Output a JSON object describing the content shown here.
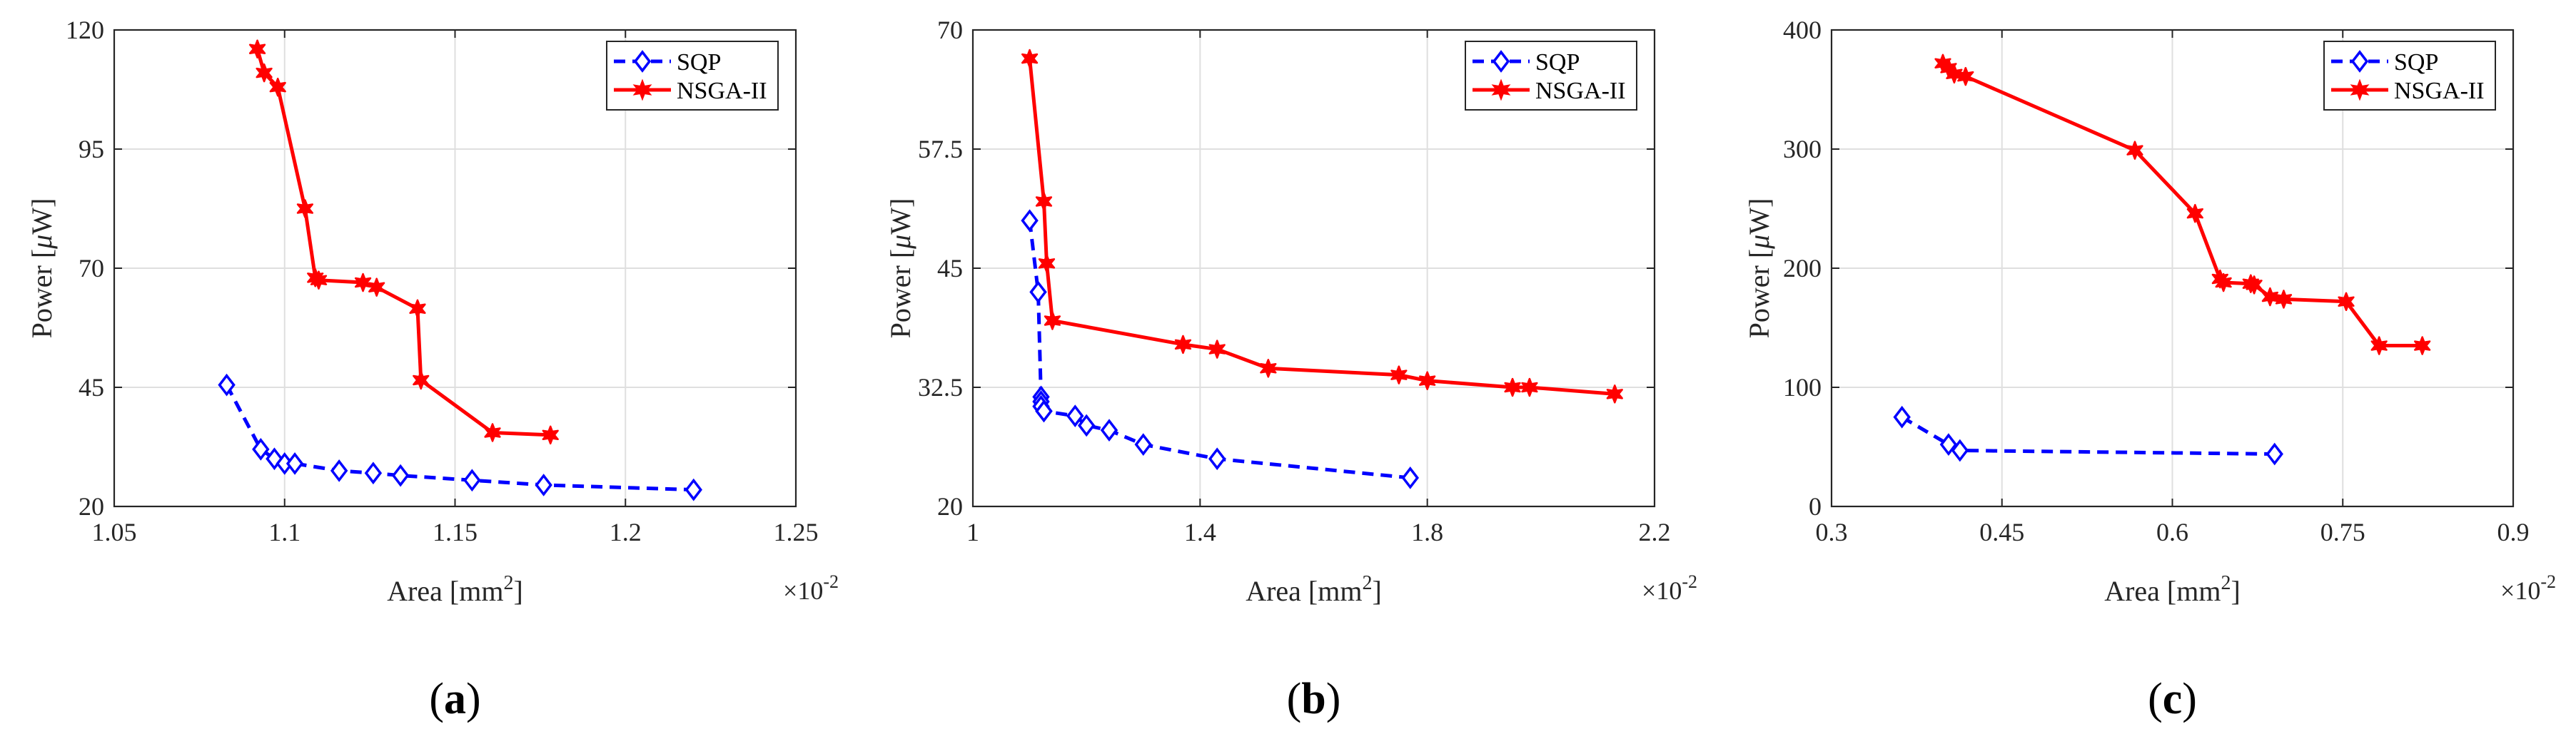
{
  "chart_data": [
    {
      "type": "line",
      "panel_label_open": "(",
      "panel_label_letter": "a",
      "panel_label_close": ")",
      "xlabel_text": "Area [mm",
      "xlabel_sup": "2",
      "xlabel_end": "]",
      "ylabel_pre": "Power [",
      "ylabel_mu": "μ",
      "ylabel_post": "W]",
      "x_multiplier_base": "×10",
      "x_multiplier_exp": "-2",
      "xlim": [
        1.05,
        1.25
      ],
      "ylim": [
        20,
        120
      ],
      "xticks": [
        1.05,
        1.1,
        1.15,
        1.2,
        1.25
      ],
      "xtick_labels": [
        "1.05",
        "1.1",
        "1.15",
        "1.2",
        "1.25"
      ],
      "yticks": [
        20,
        45,
        70,
        95,
        120
      ],
      "ytick_labels": [
        "20",
        "45",
        "70",
        "95",
        "120"
      ],
      "legend_position": "top-right",
      "series": [
        {
          "name": "SQP",
          "color": "#0000ff",
          "line_style": "dashed",
          "marker": "diamond",
          "x": [
            1.083,
            1.093,
            1.097,
            1.1,
            1.103,
            1.116,
            1.126,
            1.134,
            1.155,
            1.176,
            1.22
          ],
          "y": [
            45.5,
            32,
            30,
            29,
            29,
            27.5,
            27,
            26.5,
            25.5,
            24.5,
            23.5
          ]
        },
        {
          "name": "NSGA-II",
          "color": "#ff0000",
          "line_style": "solid",
          "marker": "star",
          "x": [
            1.092,
            1.094,
            1.098,
            1.106,
            1.109,
            1.11,
            1.123,
            1.127,
            1.139,
            1.14,
            1.161,
            1.178
          ],
          "y": [
            116,
            111,
            108,
            82.5,
            68,
            67.5,
            67,
            66,
            61.5,
            46.5,
            35.5,
            35
          ]
        }
      ]
    },
    {
      "type": "line",
      "panel_label_open": "(",
      "panel_label_letter": "b",
      "panel_label_close": ")",
      "xlabel_text": "Area [mm",
      "xlabel_sup": "2",
      "xlabel_end": "]",
      "ylabel_pre": "Power [",
      "ylabel_mu": "μ",
      "ylabel_post": "W]",
      "x_multiplier_base": "×10",
      "x_multiplier_exp": "-2",
      "xlim": [
        1.0,
        2.2
      ],
      "ylim": [
        20,
        70
      ],
      "xticks": [
        1.0,
        1.4,
        1.8,
        2.2
      ],
      "xtick_labels": [
        "1",
        "1.4",
        "1.8",
        "2.2"
      ],
      "yticks": [
        20,
        32.5,
        45,
        57.5,
        70
      ],
      "ytick_labels": [
        "20",
        "32.5",
        "45",
        "57.5",
        "70"
      ],
      "legend_position": "top-right",
      "series": [
        {
          "name": "SQP",
          "color": "#0000ff",
          "line_style": "dashed",
          "marker": "diamond",
          "x": [
            1.1,
            1.115,
            1.12,
            1.12,
            1.12,
            1.125,
            1.125,
            1.18,
            1.2,
            1.24,
            1.3,
            1.43,
            1.77
          ],
          "y": [
            50,
            42.5,
            31.5,
            31,
            30.5,
            30,
            30,
            29.5,
            28.5,
            28,
            26.5,
            25,
            23
          ]
        },
        {
          "name": "NSGA-II",
          "color": "#ff0000",
          "line_style": "solid",
          "marker": "star",
          "x": [
            1.1,
            1.125,
            1.13,
            1.14,
            1.37,
            1.43,
            1.52,
            1.75,
            1.8,
            1.95,
            1.98,
            2.13
          ],
          "y": [
            67,
            52,
            45.5,
            39.5,
            37,
            36.5,
            34.5,
            33.8,
            33.2,
            32.5,
            32.5,
            31.8
          ]
        }
      ]
    },
    {
      "type": "line",
      "panel_label_open": "(",
      "panel_label_letter": "c",
      "panel_label_close": ")",
      "xlabel_text": "Area [mm",
      "xlabel_sup": "2",
      "xlabel_end": "]",
      "ylabel_pre": "Power [",
      "ylabel_mu": "μ",
      "ylabel_post": "W]",
      "x_multiplier_base": "×10",
      "x_multiplier_exp": "-2",
      "xlim": [
        0.3,
        0.9
      ],
      "ylim": [
        0,
        400
      ],
      "xticks": [
        0.3,
        0.45,
        0.6,
        0.75,
        0.9
      ],
      "xtick_labels": [
        "0.3",
        "0.45",
        "0.6",
        "0.75",
        "0.9"
      ],
      "yticks": [
        0,
        100,
        200,
        300,
        400
      ],
      "ytick_labels": [
        "0",
        "100",
        "200",
        "300",
        "400"
      ],
      "legend_position": "top-right",
      "series": [
        {
          "name": "SQP",
          "color": "#0000ff",
          "line_style": "dashed",
          "marker": "diamond",
          "x": [
            0.362,
            0.403,
            0.413,
            0.69
          ],
          "y": [
            75,
            52,
            47,
            44
          ]
        },
        {
          "name": "NSGA-II",
          "color": "#ff0000",
          "line_style": "solid",
          "marker": "star",
          "x": [
            0.398,
            0.403,
            0.408,
            0.418,
            0.567,
            0.62,
            0.642,
            0.645,
            0.669,
            0.672,
            0.686,
            0.698,
            0.753,
            0.782,
            0.82
          ],
          "y": [
            372,
            368,
            363,
            361,
            299,
            246,
            191,
            188,
            187,
            186,
            176,
            174,
            172,
            135,
            135
          ]
        }
      ]
    }
  ]
}
